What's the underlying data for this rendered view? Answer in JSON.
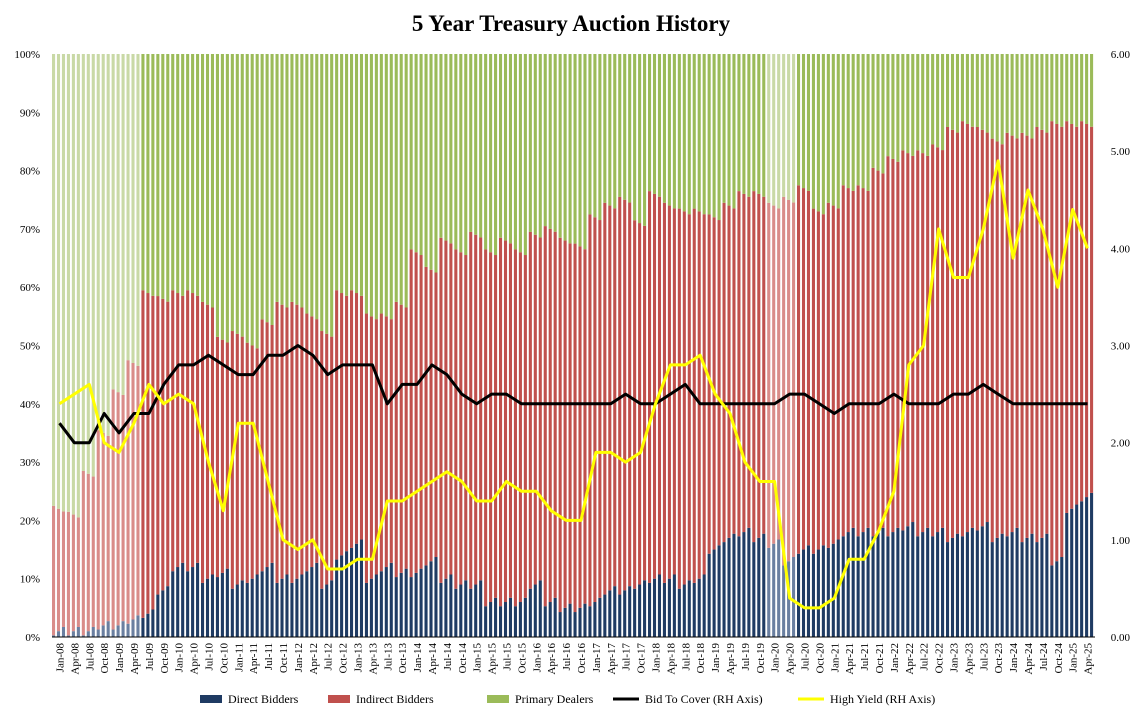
{
  "chart_data": {
    "type": "bar",
    "stacked_percent": true,
    "title": "5 Year Treasury Auction History",
    "left_axis": {
      "ylim": [
        0,
        100
      ],
      "ticks": [
        "0%",
        "10%",
        "20%",
        "30%",
        "40%",
        "50%",
        "60%",
        "70%",
        "80%",
        "90%",
        "100%"
      ]
    },
    "right_axis": {
      "ylim": [
        0,
        6
      ],
      "ticks": [
        "0.00",
        "1.00",
        "2.00",
        "3.00",
        "4.00",
        "5.00",
        "6.00"
      ]
    },
    "x_tick_labels": [
      "Jan-08",
      "Apr-08",
      "Jul-08",
      "Oct-08",
      "Jan-09",
      "Apr-09",
      "Jul-09",
      "Oct-09",
      "Jan-10",
      "Apr-10",
      "Jul-10",
      "Oct-10",
      "Jan-11",
      "Apr-11",
      "Jul-11",
      "Oct-11",
      "Jan-12",
      "Apr-12",
      "Jul-12",
      "Oct-12",
      "Jan-13",
      "Apr-13",
      "Jul-13",
      "Oct-13",
      "Jan-14",
      "Apr-14",
      "Jul-14",
      "Oct-14",
      "Jan-15",
      "Apr-15",
      "Jul-15",
      "Oct-15",
      "Jan-16",
      "Apr-16",
      "Jul-16",
      "Oct-16",
      "Jan-17",
      "Apr-17",
      "Jul-17",
      "Oct-17",
      "Jan-18",
      "Apr-18",
      "Jul-18",
      "Oct-18",
      "Jan-19",
      "Apr-19",
      "Jul-19",
      "Oct-19",
      "Jan-20",
      "Apr-20",
      "Jul-20",
      "Oct-20",
      "Jan-21",
      "Apr-21",
      "Jul-21",
      "Oct-21",
      "Jan-22",
      "Apr-22",
      "Jul-22",
      "Oct-22",
      "Jan-23",
      "Apr-23",
      "Jul-23",
      "Oct-23",
      "Jan-24",
      "Apr-24",
      "Jul-24",
      "Oct-24",
      "Jan-25",
      "Apr-25"
    ],
    "series_meta": [
      {
        "name": "Direct Bidders",
        "color": "#1f3b63",
        "axis": "left",
        "kind": "bar"
      },
      {
        "name": "Indirect Bidders",
        "color": "#c0504d",
        "axis": "left",
        "kind": "bar"
      },
      {
        "name": "Primary Dealers",
        "color": "#9bbb59",
        "axis": "left",
        "kind": "bar"
      },
      {
        "name": "Bid To Cover (RH Axis)",
        "color": "#000000",
        "axis": "right",
        "kind": "line"
      },
      {
        "name": "High Yield (RH Axis)",
        "color": "#ffff00",
        "axis": "right",
        "kind": "line"
      }
    ],
    "quarterly_points": [
      {
        "date": "Jan-08",
        "direct": 1,
        "indirect": 21,
        "bid_to_cover": 2.2,
        "high_yield": 2.4
      },
      {
        "date": "Apr-08",
        "direct": 1,
        "indirect": 20,
        "bid_to_cover": 2.0,
        "high_yield": 2.5
      },
      {
        "date": "Jul-08",
        "direct": 1,
        "indirect": 27,
        "bid_to_cover": 2.0,
        "high_yield": 2.6
      },
      {
        "date": "Oct-08",
        "direct": 2,
        "indirect": 33,
        "bid_to_cover": 2.3,
        "high_yield": 2.0
      },
      {
        "date": "Jan-09",
        "direct": 2,
        "indirect": 40,
        "bid_to_cover": 2.1,
        "high_yield": 1.9
      },
      {
        "date": "Apr-09",
        "direct": 3,
        "indirect": 44,
        "bid_to_cover": 2.3,
        "high_yield": 2.2
      },
      {
        "date": "Jul-09",
        "direct": 4,
        "indirect": 55,
        "bid_to_cover": 2.3,
        "high_yield": 2.6
      },
      {
        "date": "Oct-09",
        "direct": 8,
        "indirect": 50,
        "bid_to_cover": 2.6,
        "high_yield": 2.4
      },
      {
        "date": "Jan-10",
        "direct": 12,
        "indirect": 47,
        "bid_to_cover": 2.8,
        "high_yield": 2.5
      },
      {
        "date": "Apr-10",
        "direct": 12,
        "indirect": 47,
        "bid_to_cover": 2.8,
        "high_yield": 2.4
      },
      {
        "date": "Jul-10",
        "direct": 10,
        "indirect": 47,
        "bid_to_cover": 2.9,
        "high_yield": 1.8
      },
      {
        "date": "Oct-10",
        "direct": 11,
        "indirect": 40,
        "bid_to_cover": 2.8,
        "high_yield": 1.3
      },
      {
        "date": "Jan-11",
        "direct": 9,
        "indirect": 43,
        "bid_to_cover": 2.7,
        "high_yield": 2.2
      },
      {
        "date": "Apr-11",
        "direct": 10,
        "indirect": 40,
        "bid_to_cover": 2.7,
        "high_yield": 2.2
      },
      {
        "date": "Jul-11",
        "direct": 12,
        "indirect": 42,
        "bid_to_cover": 2.9,
        "high_yield": 1.6
      },
      {
        "date": "Oct-11",
        "direct": 10,
        "indirect": 47,
        "bid_to_cover": 2.9,
        "high_yield": 1.0
      },
      {
        "date": "Jan-12",
        "direct": 10,
        "indirect": 47,
        "bid_to_cover": 3.0,
        "high_yield": 0.9
      },
      {
        "date": "Apr-12",
        "direct": 12,
        "indirect": 43,
        "bid_to_cover": 2.9,
        "high_yield": 1.0
      },
      {
        "date": "Jul-12",
        "direct": 9,
        "indirect": 43,
        "bid_to_cover": 2.7,
        "high_yield": 0.7
      },
      {
        "date": "Oct-12",
        "direct": 14,
        "indirect": 45,
        "bid_to_cover": 2.8,
        "high_yield": 0.7
      },
      {
        "date": "Jan-13",
        "direct": 16,
        "indirect": 43,
        "bid_to_cover": 2.8,
        "high_yield": 0.8
      },
      {
        "date": "Apr-13",
        "direct": 10,
        "indirect": 45,
        "bid_to_cover": 2.8,
        "high_yield": 0.8
      },
      {
        "date": "Jul-13",
        "direct": 12,
        "indirect": 43,
        "bid_to_cover": 2.4,
        "high_yield": 1.4
      },
      {
        "date": "Oct-13",
        "direct": 11,
        "indirect": 46,
        "bid_to_cover": 2.6,
        "high_yield": 1.4
      },
      {
        "date": "Jan-14",
        "direct": 11,
        "indirect": 55,
        "bid_to_cover": 2.6,
        "high_yield": 1.5
      },
      {
        "date": "Apr-14",
        "direct": 13,
        "indirect": 50,
        "bid_to_cover": 2.8,
        "high_yield": 1.6
      },
      {
        "date": "Jul-14",
        "direct": 10,
        "indirect": 58,
        "bid_to_cover": 2.7,
        "high_yield": 1.7
      },
      {
        "date": "Oct-14",
        "direct": 9,
        "indirect": 57,
        "bid_to_cover": 2.5,
        "high_yield": 1.6
      },
      {
        "date": "Jan-15",
        "direct": 9,
        "indirect": 60,
        "bid_to_cover": 2.4,
        "high_yield": 1.4
      },
      {
        "date": "Apr-15",
        "direct": 6,
        "indirect": 60,
        "bid_to_cover": 2.5,
        "high_yield": 1.4
      },
      {
        "date": "Jul-15",
        "direct": 6,
        "indirect": 62,
        "bid_to_cover": 2.5,
        "high_yield": 1.6
      },
      {
        "date": "Oct-15",
        "direct": 6,
        "indirect": 60,
        "bid_to_cover": 2.4,
        "high_yield": 1.5
      },
      {
        "date": "Jan-16",
        "direct": 9,
        "indirect": 60,
        "bid_to_cover": 2.4,
        "high_yield": 1.5
      },
      {
        "date": "Apr-16",
        "direct": 6,
        "indirect": 64,
        "bid_to_cover": 2.4,
        "high_yield": 1.3
      },
      {
        "date": "Jul-16",
        "direct": 5,
        "indirect": 63,
        "bid_to_cover": 2.4,
        "high_yield": 1.2
      },
      {
        "date": "Oct-16",
        "direct": 5,
        "indirect": 62,
        "bid_to_cover": 2.4,
        "high_yield": 1.2
      },
      {
        "date": "Jan-17",
        "direct": 6,
        "indirect": 66,
        "bid_to_cover": 2.4,
        "high_yield": 1.9
      },
      {
        "date": "Apr-17",
        "direct": 8,
        "indirect": 66,
        "bid_to_cover": 2.4,
        "high_yield": 1.9
      },
      {
        "date": "Jul-17",
        "direct": 8,
        "indirect": 67,
        "bid_to_cover": 2.5,
        "high_yield": 1.8
      },
      {
        "date": "Oct-17",
        "direct": 9,
        "indirect": 62,
        "bid_to_cover": 2.4,
        "high_yield": 1.9
      },
      {
        "date": "Jan-18",
        "direct": 10,
        "indirect": 66,
        "bid_to_cover": 2.4,
        "high_yield": 2.4
      },
      {
        "date": "Apr-18",
        "direct": 10,
        "indirect": 64,
        "bid_to_cover": 2.5,
        "high_yield": 2.8
      },
      {
        "date": "Jul-18",
        "direct": 9,
        "indirect": 64,
        "bid_to_cover": 2.6,
        "high_yield": 2.8
      },
      {
        "date": "Oct-18",
        "direct": 10,
        "indirect": 63,
        "bid_to_cover": 2.4,
        "high_yield": 2.9
      },
      {
        "date": "Jan-19",
        "direct": 15,
        "indirect": 57,
        "bid_to_cover": 2.4,
        "high_yield": 2.5
      },
      {
        "date": "Apr-19",
        "direct": 17,
        "indirect": 57,
        "bid_to_cover": 2.4,
        "high_yield": 2.3
      },
      {
        "date": "Jul-19",
        "direct": 18,
        "indirect": 58,
        "bid_to_cover": 2.4,
        "high_yield": 1.8
      },
      {
        "date": "Oct-19",
        "direct": 17,
        "indirect": 59,
        "bid_to_cover": 2.4,
        "high_yield": 1.6
      },
      {
        "date": "Jan-20",
        "direct": 16,
        "indirect": 58,
        "bid_to_cover": 2.4,
        "high_yield": 1.6
      },
      {
        "date": "Apr-20",
        "direct": 13,
        "indirect": 62,
        "bid_to_cover": 2.5,
        "high_yield": 0.4
      },
      {
        "date": "Jul-20",
        "direct": 15,
        "indirect": 62,
        "bid_to_cover": 2.5,
        "high_yield": 0.3
      },
      {
        "date": "Oct-20",
        "direct": 15,
        "indirect": 58,
        "bid_to_cover": 2.4,
        "high_yield": 0.3
      },
      {
        "date": "Jan-21",
        "direct": 16,
        "indirect": 58,
        "bid_to_cover": 2.3,
        "high_yield": 0.4
      },
      {
        "date": "Apr-21",
        "direct": 18,
        "indirect": 59,
        "bid_to_cover": 2.4,
        "high_yield": 0.8
      },
      {
        "date": "Jul-21",
        "direct": 18,
        "indirect": 59,
        "bid_to_cover": 2.4,
        "high_yield": 0.8
      },
      {
        "date": "Oct-21",
        "direct": 18,
        "indirect": 62,
        "bid_to_cover": 2.4,
        "high_yield": 1.1
      },
      {
        "date": "Jan-22",
        "direct": 18,
        "indirect": 64,
        "bid_to_cover": 2.5,
        "high_yield": 1.5
      },
      {
        "date": "Apr-22",
        "direct": 19,
        "indirect": 64,
        "bid_to_cover": 2.4,
        "high_yield": 2.8
      },
      {
        "date": "Jul-22",
        "direct": 18,
        "indirect": 65,
        "bid_to_cover": 2.4,
        "high_yield": 3.0
      },
      {
        "date": "Oct-22",
        "direct": 18,
        "indirect": 66,
        "bid_to_cover": 2.4,
        "high_yield": 4.2
      },
      {
        "date": "Jan-23",
        "direct": 17,
        "indirect": 70,
        "bid_to_cover": 2.5,
        "high_yield": 3.7
      },
      {
        "date": "Apr-23",
        "direct": 18,
        "indirect": 70,
        "bid_to_cover": 2.5,
        "high_yield": 3.7
      },
      {
        "date": "Jul-23",
        "direct": 19,
        "indirect": 68,
        "bid_to_cover": 2.6,
        "high_yield": 4.2
      },
      {
        "date": "Oct-23",
        "direct": 17,
        "indirect": 68,
        "bid_to_cover": 2.5,
        "high_yield": 4.9
      },
      {
        "date": "Jan-24",
        "direct": 18,
        "indirect": 68,
        "bid_to_cover": 2.4,
        "high_yield": 3.9
      },
      {
        "date": "Apr-24",
        "direct": 17,
        "indirect": 69,
        "bid_to_cover": 2.4,
        "high_yield": 4.6
      },
      {
        "date": "Jul-24",
        "direct": 17,
        "indirect": 70,
        "bid_to_cover": 2.4,
        "high_yield": 4.2
      },
      {
        "date": "Oct-24",
        "direct": 13,
        "indirect": 75,
        "bid_to_cover": 2.4,
        "high_yield": 3.6
      },
      {
        "date": "Jan-25",
        "direct": 22,
        "indirect": 66,
        "bid_to_cover": 2.4,
        "high_yield": 4.4
      },
      {
        "date": "Apr-25",
        "direct": 24,
        "indirect": 64,
        "bid_to_cover": 2.4,
        "high_yield": 4.0
      }
    ],
    "recession_shading": [
      [
        "Jan-08",
        "Jun-09"
      ],
      [
        "Feb-20",
        "Apr-20"
      ]
    ]
  }
}
